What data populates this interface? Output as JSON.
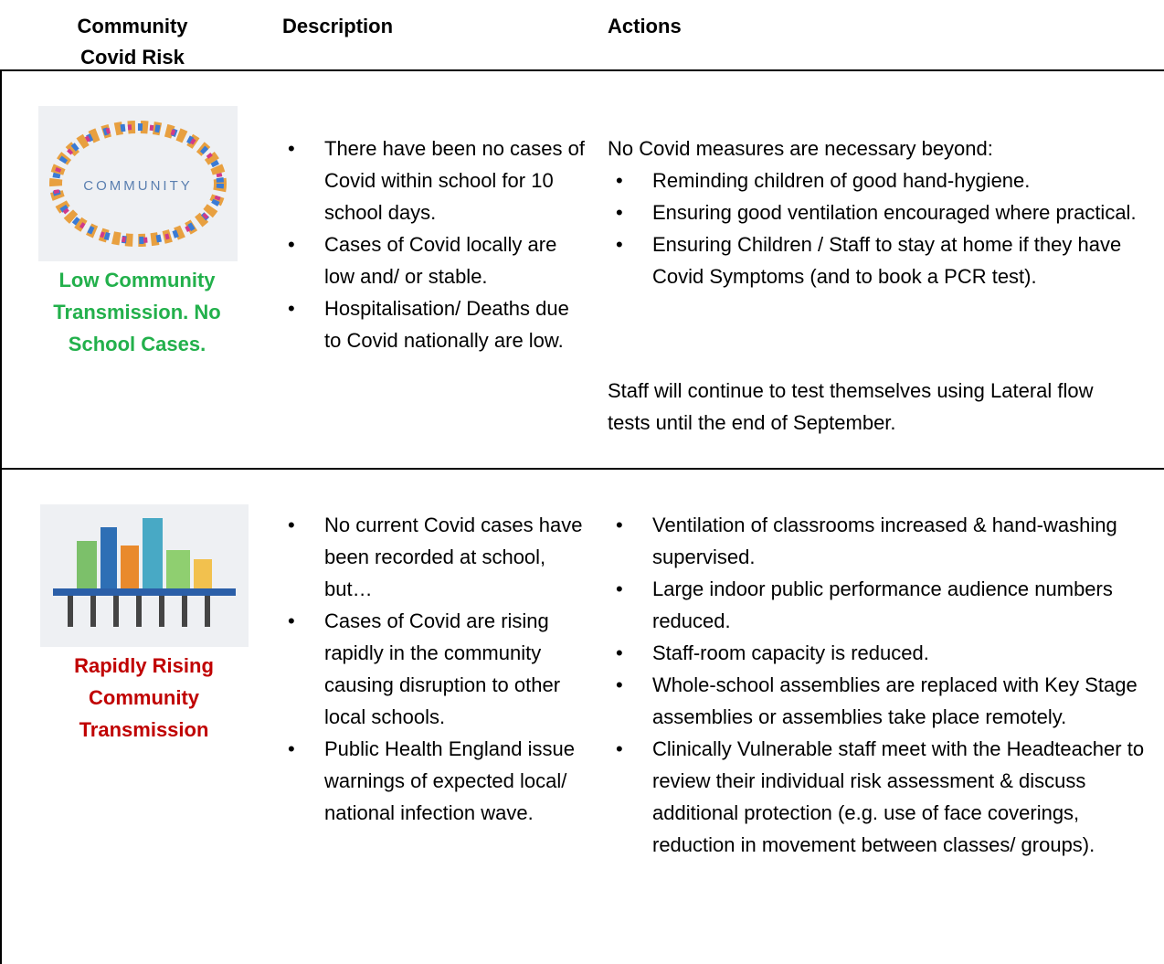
{
  "header": {
    "columns": [
      "Community Covid Risk",
      "Description",
      "Actions"
    ]
  },
  "rows": [
    {
      "image_text": "COMMUNITY",
      "risk": "Low Community Transmission. No School Cases.",
      "description": [
        "There have been no cases of Covid within school for 10 school days.",
        "Cases of Covid locally are low and/ or stable.",
        "Hospitalisation/ Deaths due to Covid nationally are low."
      ],
      "actions_intro": "No Covid measures are necessary beyond:",
      "actions": [
        "Reminding children of good hand-hygiene.",
        "Ensuring good ventilation encouraged where practical.",
        "Ensuring Children / Staff to stay at home if they have Covid Symptoms (and to book a PCR test)."
      ],
      "actions_note": "Staff will continue to test themselves using Lateral flow tests until the end of September."
    },
    {
      "risk": "Rapidly Rising Community Transmission",
      "description": [
        "No current Covid cases have been recorded at school, but…",
        "Cases of Covid are rising rapidly in the community causing disruption to other local schools.",
        "Public Health England issue warnings of expected local/ national infection wave."
      ],
      "actions": [
        "Ventilation of classrooms increased & hand-washing supervised.",
        "Large indoor public performance audience numbers reduced.",
        "Staff-room capacity is reduced.",
        "Whole-school assemblies are replaced with Key Stage assemblies or assemblies take place remotely.",
        "Clinically Vulnerable staff meet with the Headteacher to review their individual risk assessment & discuss additional protection (e.g. use of face coverings, reduction in movement between classes/ groups)."
      ]
    }
  ]
}
